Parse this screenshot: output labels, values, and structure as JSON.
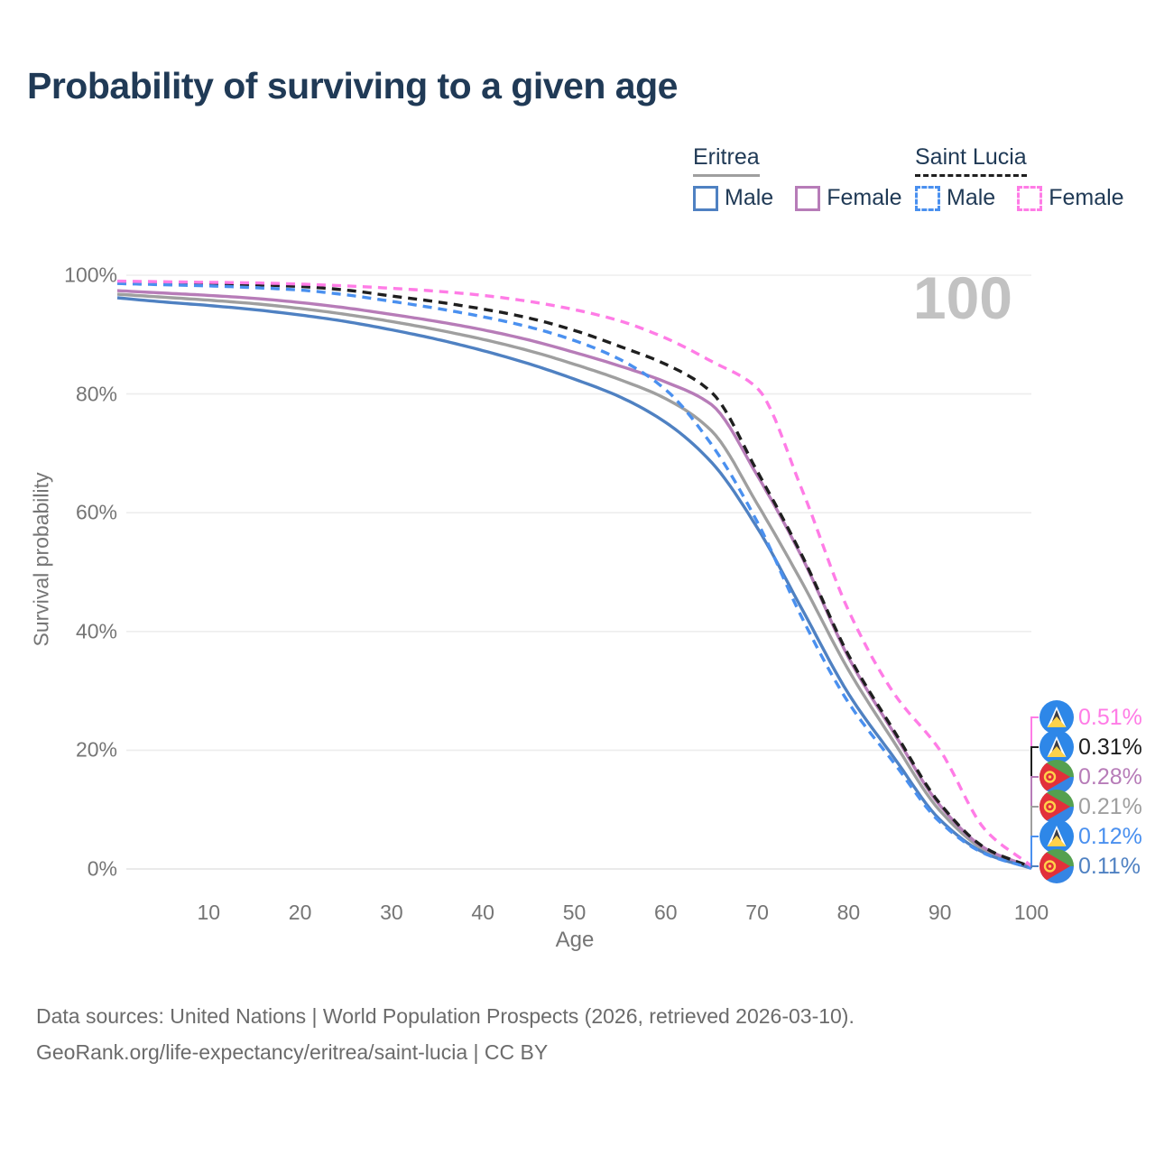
{
  "title": "Probability of surviving to a given age",
  "watermark": "100",
  "legend": {
    "groups": [
      {
        "name": "Eritrea",
        "underline_color": "#9f9f9f",
        "underline_dashed": false,
        "items": [
          {
            "label": "Male",
            "color": "#4f81c2",
            "dashed": false
          },
          {
            "label": "Female",
            "color": "#b77cb8",
            "dashed": false
          }
        ]
      },
      {
        "name": "Saint Lucia",
        "underline_color": "#1f1f1f",
        "underline_dashed": true,
        "items": [
          {
            "label": "Male",
            "color": "#4a90ef",
            "dashed": true
          },
          {
            "label": "Female",
            "color": "#ff7ce6",
            "dashed": true
          }
        ]
      }
    ]
  },
  "chart_data": {
    "type": "line",
    "title": "Probability of surviving to a given age",
    "xlabel": "Age",
    "ylabel": "Survival probability",
    "xlim": [
      0,
      100
    ],
    "ylim": [
      0,
      100
    ],
    "grid": true,
    "x_ticks": [
      10,
      20,
      30,
      40,
      50,
      60,
      70,
      80,
      90,
      100
    ],
    "y_ticks": [
      {
        "value": 0,
        "label": "0%"
      },
      {
        "value": 20,
        "label": "20%"
      },
      {
        "value": 40,
        "label": "40%"
      },
      {
        "value": 60,
        "label": "60%"
      },
      {
        "value": 80,
        "label": "80%"
      },
      {
        "value": 100,
        "label": "100%"
      }
    ],
    "x": [
      0,
      5,
      10,
      15,
      20,
      25,
      30,
      35,
      40,
      45,
      50,
      55,
      60,
      65,
      70,
      75,
      80,
      85,
      90,
      95,
      100
    ],
    "series": [
      {
        "name": "Saint Lucia Female",
        "country": "Saint Lucia",
        "flag": "saint-lucia",
        "color": "#ff7ce6",
        "dashed": true,
        "end_label": "0.51%",
        "values": [
          99.0,
          98.9,
          98.8,
          98.7,
          98.5,
          98.2,
          97.8,
          97.3,
          96.6,
          95.6,
          94.2,
          92.3,
          89.4,
          85.5,
          81.0,
          63.5,
          43.5,
          29.5,
          20.0,
          6.5,
          0.51
        ]
      },
      {
        "name": "Saint Lucia Both sexes",
        "country": "Saint Lucia",
        "flag": "saint-lucia",
        "color": "#1f1f1f",
        "dashed": true,
        "end_label": "0.31%",
        "values": [
          98.8,
          98.7,
          98.6,
          98.4,
          98.1,
          97.5,
          96.5,
          95.5,
          94.3,
          92.8,
          90.7,
          88.0,
          85.0,
          80.3,
          67.0,
          52.5,
          36.0,
          23.2,
          11.0,
          3.5,
          0.31
        ]
      },
      {
        "name": "Eritrea Female",
        "country": "Eritrea",
        "flag": "eritrea",
        "color": "#b77cb8",
        "dashed": false,
        "end_label": "0.28%",
        "values": [
          97.4,
          97.0,
          96.6,
          96.1,
          95.4,
          94.5,
          93.4,
          92.2,
          90.8,
          89.1,
          87.0,
          84.7,
          82.0,
          78.2,
          66.3,
          52.2,
          35.6,
          22.8,
          10.7,
          3.4,
          0.28
        ]
      },
      {
        "name": "Eritrea Both sexes",
        "country": "Eritrea",
        "flag": "eritrea",
        "color": "#9f9f9f",
        "dashed": false,
        "end_label": "0.21%",
        "values": [
          96.8,
          96.3,
          95.8,
          95.2,
          94.4,
          93.4,
          92.2,
          90.8,
          89.2,
          87.3,
          85.0,
          82.4,
          79.2,
          73.8,
          61.5,
          48.0,
          33.5,
          21.3,
          9.8,
          3.1,
          0.21
        ]
      },
      {
        "name": "Saint Lucia Male",
        "country": "Saint Lucia",
        "flag": "saint-lucia",
        "color": "#4a90ef",
        "dashed": true,
        "end_label": "0.12%",
        "values": [
          98.6,
          98.4,
          98.2,
          97.9,
          97.5,
          96.7,
          95.6,
          94.4,
          93.0,
          91.3,
          89.0,
          85.8,
          80.7,
          71.5,
          58.5,
          42.0,
          28.0,
          17.8,
          7.9,
          2.5,
          0.12
        ]
      },
      {
        "name": "Eritrea Male",
        "country": "Eritrea",
        "flag": "eritrea",
        "color": "#4f81c2",
        "dashed": false,
        "end_label": "0.11%",
        "values": [
          96.2,
          95.5,
          94.9,
          94.2,
          93.3,
          92.2,
          90.8,
          89.2,
          87.3,
          85.1,
          82.5,
          79.5,
          75.2,
          68.5,
          57.5,
          43.5,
          29.5,
          18.7,
          8.3,
          2.6,
          0.11
        ]
      }
    ],
    "legend_position": "top-right"
  },
  "footer": {
    "line1": "Data sources: United Nations | World Population Prospects (2026, retrieved 2026-03-10).",
    "line2": "GeoRank.org/life-expectancy/eritrea/saint-lucia | CC BY"
  }
}
